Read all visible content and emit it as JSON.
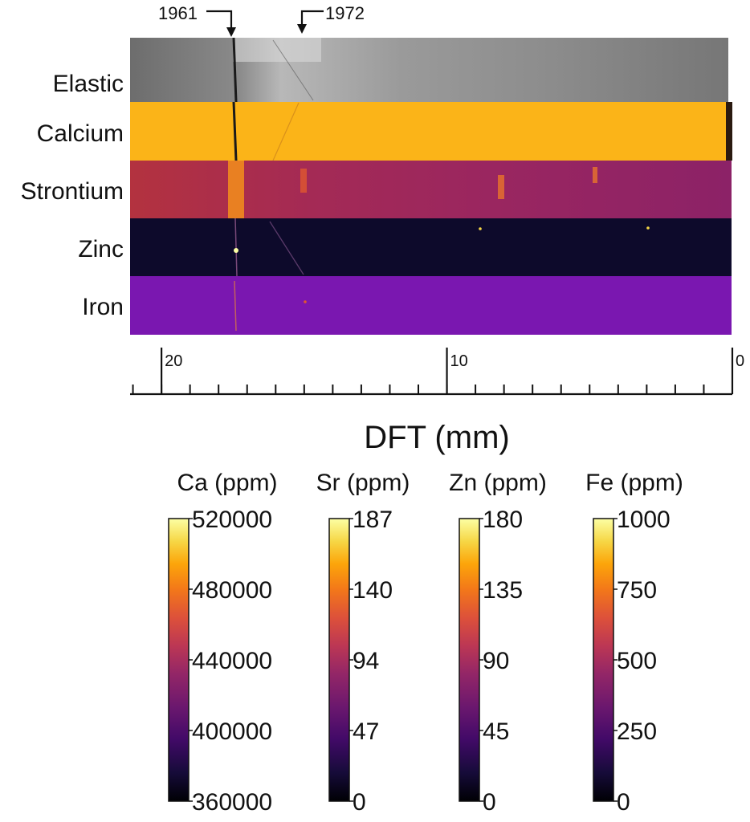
{
  "markers": [
    {
      "label": "1961",
      "dft_mm": 17.6
    },
    {
      "label": "1972",
      "dft_mm": 15.2
    }
  ],
  "panels": [
    {
      "key": "elastic",
      "label": "Elastic"
    },
    {
      "key": "calcium",
      "label": "Calcium"
    },
    {
      "key": "strontium",
      "label": "Strontium"
    },
    {
      "key": "zinc",
      "label": "Zinc"
    },
    {
      "key": "iron",
      "label": "Iron"
    }
  ],
  "axis": {
    "label": "DFT (mm)",
    "range": [
      21.1,
      0
    ],
    "major_ticks": [
      20,
      10,
      0
    ],
    "major_tick_labels": [
      "20",
      "10",
      "0"
    ],
    "minor_step": 1
  },
  "colorbars": [
    {
      "title": "Ca (ppm)",
      "ticks": [
        "520000",
        "480000",
        "440000",
        "400000",
        "360000"
      ]
    },
    {
      "title": "Sr (ppm)",
      "ticks": [
        "187",
        "140",
        "94",
        "47",
        "0"
      ]
    },
    {
      "title": "Zn (ppm)",
      "ticks": [
        "180",
        "135",
        "90",
        "45",
        "0"
      ]
    },
    {
      "title": "Fe (ppm)",
      "ticks": [
        "1000",
        "750",
        "500",
        "250",
        "0"
      ]
    }
  ],
  "colormap": "inferno-like (black–purple–red–orange–yellow–white)"
}
